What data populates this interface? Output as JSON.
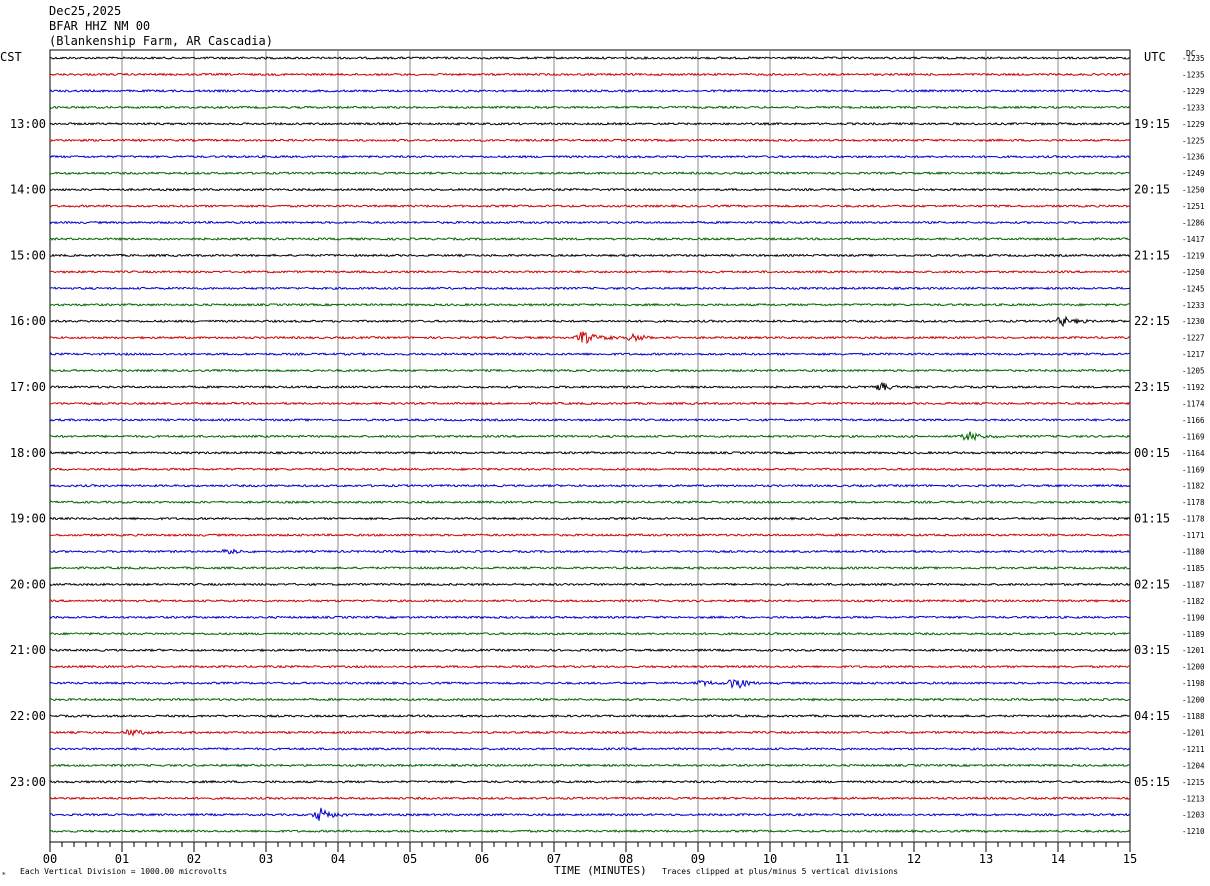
{
  "header": {
    "date": "Dec25,2025",
    "station": "BFAR HHZ NM 00",
    "location": "(Blankenship Farm, AR Cascadia)"
  },
  "left_zone": "CST",
  "right_zone": "UTC",
  "dc_label": "DC",
  "footer": {
    "xlabel": "TIME (MINUTES)",
    "scale_note": "Each Vertical Division = 1000.00 microvolts",
    "clip_note": "Traces clipped at plus/minus 5 vertical divisions"
  },
  "colors": {
    "cycle": [
      "#000000",
      "#cc0000",
      "#0000cc",
      "#006600"
    ],
    "grid": "#888888"
  },
  "chart_data": {
    "type": "line",
    "title": "BFAR HHZ NM 00",
    "xlabel": "TIME (MINUTES)",
    "xlim": [
      0,
      15
    ],
    "x_ticks": [
      "00",
      "01",
      "02",
      "03",
      "04",
      "05",
      "06",
      "07",
      "08",
      "09",
      "10",
      "11",
      "12",
      "13",
      "14",
      "15"
    ],
    "trace_count": 48,
    "left_labels": [
      "13:00",
      "14:00",
      "15:00",
      "16:00",
      "17:00",
      "18:00",
      "19:00",
      "20:00",
      "21:00",
      "22:00",
      "23:00"
    ],
    "right_labels": [
      "19:15",
      "20:15",
      "21:15",
      "22:15",
      "23:15",
      "00:15",
      "01:15",
      "02:15",
      "03:15",
      "04:15",
      "05:15"
    ],
    "hour_label_trace_indices": [
      4,
      8,
      12,
      16,
      20,
      24,
      28,
      32,
      36,
      40,
      44
    ],
    "dc_values": [
      "-1235",
      "-1235",
      "-1229",
      "-1233",
      "-1229",
      "-1225",
      "-1236",
      "-1249",
      "-1250",
      "-1251",
      "-1286",
      "-1417",
      "-1219",
      "-1250",
      "-1245",
      "-1233",
      "-1230",
      "-1227",
      "-1217",
      "-1205",
      "-1192",
      "-1174",
      "-1166",
      "-1169",
      "-1164",
      "-1169",
      "-1182",
      "-1178",
      "-1178",
      "-1171",
      "-1180",
      "-1185",
      "-1187",
      "-1182",
      "-1190",
      "-1189",
      "-1201",
      "-1200",
      "-1198",
      "-1200",
      "-1188",
      "-1201",
      "-1211",
      "-1204",
      "-1215",
      "-1213",
      "-1203",
      "-1210"
    ],
    "events": [
      {
        "trace": 16,
        "minute": 14.05,
        "amplitude": 5
      },
      {
        "trace": 17,
        "minute": 7.4,
        "amplitude": 7
      },
      {
        "trace": 17,
        "minute": 8.1,
        "amplitude": 4
      },
      {
        "trace": 20,
        "minute": 11.55,
        "amplitude": 4
      },
      {
        "trace": 23,
        "minute": 12.75,
        "amplitude": 5
      },
      {
        "trace": 30,
        "minute": 2.5,
        "amplitude": 3
      },
      {
        "trace": 38,
        "minute": 9.05,
        "amplitude": 3
      },
      {
        "trace": 38,
        "minute": 9.5,
        "amplitude": 6
      },
      {
        "trace": 41,
        "minute": 1.1,
        "amplitude": 4
      },
      {
        "trace": 46,
        "minute": 3.75,
        "amplitude": 8
      }
    ]
  }
}
